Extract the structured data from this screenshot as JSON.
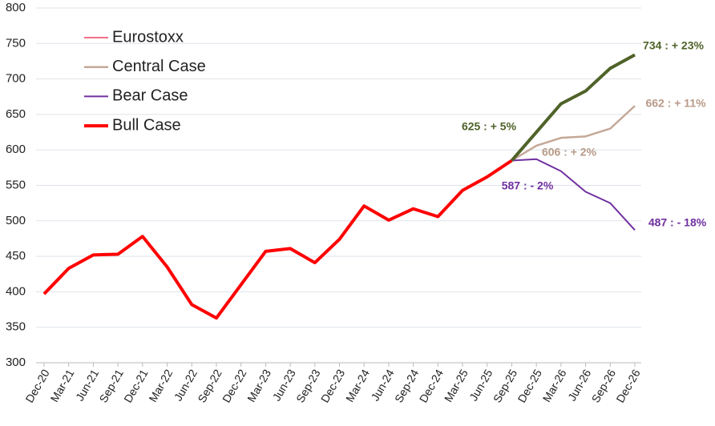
{
  "chart_data": {
    "type": "line",
    "categories": [
      "Dec-20",
      "Mar-21",
      "Jun-21",
      "Sep-21",
      "Dec-21",
      "Mar-22",
      "Jun-22",
      "Sep-22",
      "Dec-22",
      "Mar-23",
      "Jun-23",
      "Sep-23",
      "Dec-23",
      "Mar-24",
      "Jun-24",
      "Sep-24",
      "Dec-24",
      "Mar-25",
      "Jun-25",
      "Sep-25",
      "Dec-25",
      "Mar-26",
      "Jun-26",
      "Sep-26",
      "Dec-26"
    ],
    "series": [
      {
        "name": "Eurostoxx",
        "color": "#f0708a",
        "width": 2,
        "values": [
          null,
          null,
          null,
          null,
          null,
          null,
          null,
          null,
          null,
          null,
          null,
          null,
          null,
          null,
          null,
          null,
          null,
          null,
          null,
          null,
          null,
          null,
          null,
          null,
          null
        ]
      },
      {
        "name": "Central Case",
        "color": "#c4a898",
        "width": 2.5,
        "values": [
          null,
          null,
          null,
          null,
          null,
          null,
          null,
          null,
          null,
          null,
          null,
          null,
          null,
          null,
          null,
          null,
          null,
          null,
          null,
          585,
          606,
          617,
          619,
          630,
          662
        ]
      },
      {
        "name": "Bear Case",
        "color": "#7030a0",
        "width": 2,
        "values": [
          null,
          null,
          null,
          null,
          null,
          null,
          null,
          null,
          null,
          null,
          null,
          null,
          null,
          null,
          null,
          null,
          null,
          null,
          null,
          585,
          587,
          570,
          541,
          525,
          487
        ]
      },
      {
        "name": "Bull Case",
        "color": "#ff0000",
        "forecast_color": "#4f6228",
        "width": 4,
        "values": [
          397,
          433,
          452,
          453,
          478,
          435,
          382,
          363,
          410,
          457,
          461,
          441,
          474,
          521,
          501,
          517,
          506,
          543,
          562,
          585,
          625,
          665,
          683,
          715,
          734
        ]
      }
    ],
    "annotations": [
      {
        "text": "625 : + 5%",
        "color": "#4f6228"
      },
      {
        "text": "734 : + 23%",
        "color": "#4f6228"
      },
      {
        "text": "606 : + 2%",
        "color": "#b89a88"
      },
      {
        "text": "662 : + 11%",
        "color": "#b89a88"
      },
      {
        "text": "587 : - 2%",
        "color": "#7030a0"
      },
      {
        "text": "487 : - 18%",
        "color": "#7030a0"
      }
    ],
    "ylim": [
      300,
      800
    ],
    "yticks": [
      300,
      350,
      400,
      450,
      500,
      550,
      600,
      650,
      700,
      750,
      800
    ],
    "grid": true,
    "legend": "upper left"
  }
}
